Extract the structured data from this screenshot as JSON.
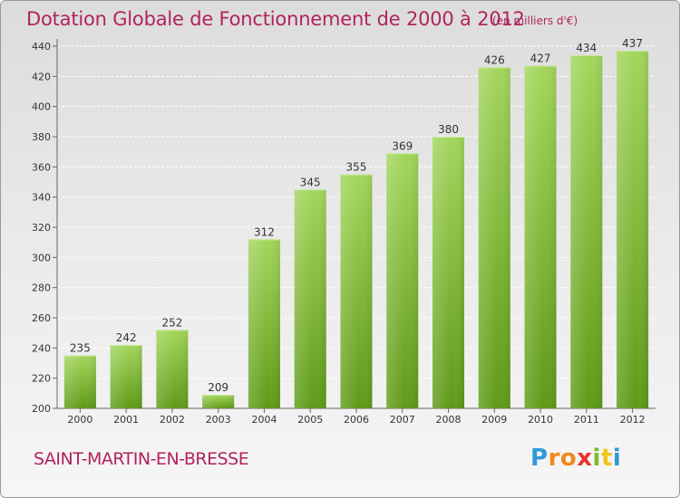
{
  "header": {
    "title": "Dotation Globale de Fonctionnement de 2000 à 2012",
    "unit": "(en milliers d'€)"
  },
  "footer": {
    "commune": "SAINT-MARTIN-EN-BRESSE",
    "logo_letters": [
      "P",
      "r",
      "o",
      "x",
      "i",
      "t",
      "i"
    ]
  },
  "colors": {
    "title": "#b0245c",
    "bar_light": "#9fd458",
    "bar_dark": "#5f9a18",
    "grid": "#ffffff",
    "text": "#333333"
  },
  "chart_data": {
    "type": "bar",
    "title": "Dotation Globale de Fonctionnement de 2000 à 2012",
    "xlabel": "",
    "ylabel": "",
    "categories": [
      "2000",
      "2001",
      "2002",
      "2003",
      "2004",
      "2005",
      "2006",
      "2007",
      "2008",
      "2009",
      "2010",
      "2011",
      "2012"
    ],
    "values": [
      235,
      242,
      252,
      209,
      312,
      345,
      355,
      369,
      380,
      426,
      427,
      434,
      437
    ],
    "ylim": [
      200,
      440
    ],
    "yticks": [
      200,
      220,
      240,
      260,
      280,
      300,
      320,
      340,
      360,
      380,
      400,
      420,
      440
    ],
    "grid": true,
    "legend": "none"
  }
}
